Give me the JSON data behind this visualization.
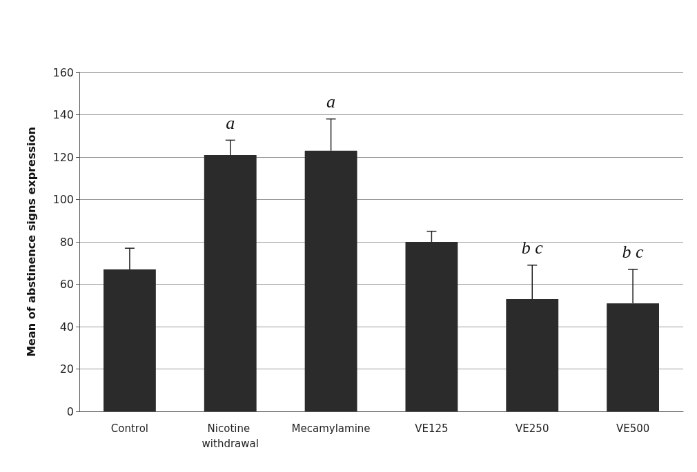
{
  "chart_data": {
    "type": "bar",
    "ylabel": "Mean of abstinence signs expression",
    "categories": [
      "Control",
      "Nicotine withdrawal",
      "Mecamylamine",
      "VE125",
      "VE250",
      "VE500"
    ],
    "values": [
      67,
      121,
      123,
      80,
      53,
      51
    ],
    "errors": [
      [
        67,
        77
      ],
      [
        121,
        128
      ],
      [
        123,
        138
      ],
      [
        80,
        85
      ],
      [
        53,
        69
      ],
      [
        51,
        67
      ]
    ],
    "color": "#2b2b2b",
    "ylim": [
      0,
      160
    ],
    "yticks": [
      0,
      20,
      40,
      60,
      80,
      100,
      120,
      140,
      160
    ],
    "grid": "y",
    "value_labels": [
      null,
      "a",
      "a",
      null,
      "b c",
      "b c"
    ]
  }
}
